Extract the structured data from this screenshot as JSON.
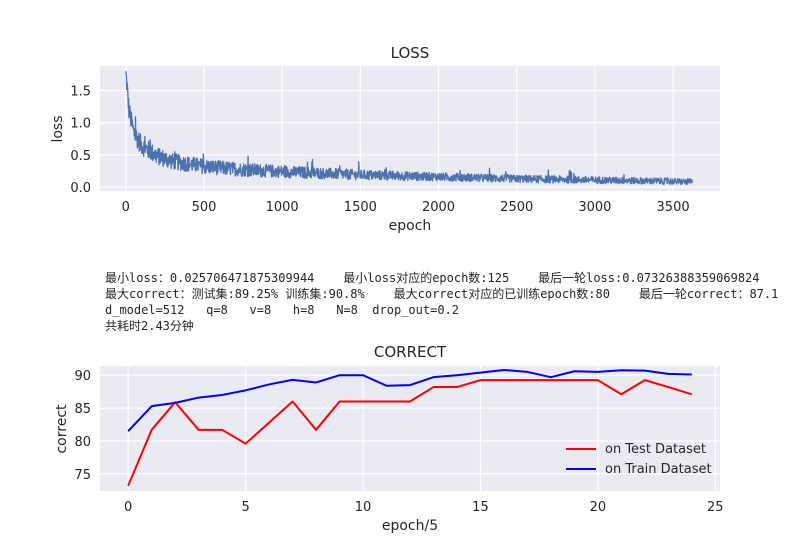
{
  "chart_data": [
    {
      "type": "line",
      "title": "LOSS",
      "xlabel": "epoch",
      "ylabel": "loss",
      "xlim": [
        -165,
        3800
      ],
      "ylim": [
        -0.06,
        1.88
      ],
      "xticks": [
        "0",
        "500",
        "1000",
        "1500",
        "2000",
        "2500",
        "3000",
        "3500"
      ],
      "yticks": [
        "0.0",
        "0.5",
        "1.0",
        "1.5"
      ],
      "grid": true,
      "series": [
        {
          "color": "#4c72b0",
          "points_count": 3625,
          "trend": [
            [
              0,
              1.8
            ],
            [
              20,
              1.2
            ],
            [
              50,
              0.85
            ],
            [
              100,
              0.65
            ],
            [
              200,
              0.48
            ],
            [
              300,
              0.4
            ],
            [
              500,
              0.32
            ],
            [
              700,
              0.28
            ],
            [
              1000,
              0.24
            ],
            [
              1500,
              0.19
            ],
            [
              2000,
              0.16
            ],
            [
              2500,
              0.13
            ],
            [
              3000,
              0.11
            ],
            [
              3500,
              0.09
            ],
            [
              3625,
              0.08
            ]
          ],
          "noise": [
            [
              0,
              0.1
            ],
            [
              300,
              0.08
            ],
            [
              600,
              0.07
            ],
            [
              1000,
              0.06
            ],
            [
              2000,
              0.04
            ],
            [
              3625,
              0.03
            ]
          ]
        }
      ]
    },
    {
      "type": "line",
      "title": "CORRECT",
      "xlabel": "epoch/5",
      "ylabel": "correct",
      "xlim": [
        -1.2,
        25.2
      ],
      "ylim": [
        72.4,
        91.4
      ],
      "xticks": [
        "0",
        "5",
        "10",
        "15",
        "20",
        "25"
      ],
      "yticks": [
        "75",
        "80",
        "85",
        "90"
      ],
      "grid": true,
      "legend": "lower-right",
      "series": [
        {
          "name": "on Test Dataset",
          "color": "#ff0000",
          "x": [
            0,
            1,
            2,
            3,
            4,
            5,
            6,
            7,
            8,
            9,
            10,
            11,
            12,
            13,
            14,
            15,
            16,
            17,
            18,
            19,
            20,
            21,
            22,
            23,
            24
          ],
          "y": [
            73.2,
            81.7,
            85.9,
            81.7,
            81.7,
            79.6,
            82.8,
            86.0,
            81.7,
            86.0,
            86.0,
            86.0,
            86.0,
            88.2,
            88.2,
            89.25,
            89.25,
            89.25,
            89.25,
            89.25,
            89.25,
            87.1,
            89.25,
            88.2,
            87.1
          ]
        },
        {
          "name": "on Train Dataset",
          "color": "#0000ff",
          "x": [
            0,
            1,
            2,
            3,
            4,
            5,
            6,
            7,
            8,
            9,
            10,
            11,
            12,
            13,
            14,
            15,
            16,
            17,
            18,
            19,
            20,
            21,
            22,
            23,
            24
          ],
          "y": [
            81.5,
            85.3,
            85.8,
            86.6,
            87.0,
            87.7,
            88.6,
            89.3,
            88.9,
            90.0,
            90.0,
            88.4,
            88.5,
            89.7,
            90.0,
            90.4,
            90.8,
            90.5,
            89.7,
            90.6,
            90.5,
            90.75,
            90.7,
            90.2,
            90.1
          ]
        }
      ]
    }
  ],
  "info": {
    "line1": "最小loss：0.025706471875309944    最小loss对应的epoch数:125    最后一轮loss:0.07326388359069824",
    "line2": "最大correct：测试集:89.25% 训练集:90.8%    最大correct对应的已训练epoch数:80    最后一轮correct：87.1",
    "line3": "d_model=512   q=8   v=8   h=8   N=8  drop_out=0.2",
    "line4": "共耗时2.43分钟"
  }
}
